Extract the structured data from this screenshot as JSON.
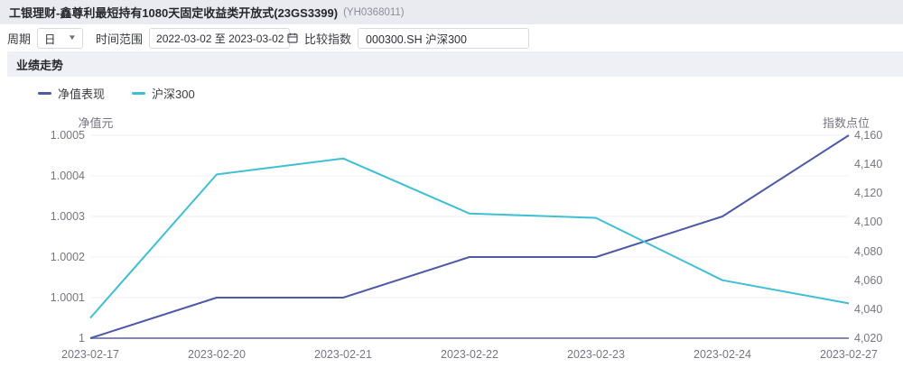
{
  "header": {
    "title": "工银理财-鑫尊利最短持有1080天固定收益类开放式(23GS3399)",
    "code": "(YH0368011)"
  },
  "toolbar": {
    "period_label": "周期",
    "period_value": "日",
    "range_label": "时间范围",
    "range_value": "2022-03-02 至 2023-03-02",
    "index_label": "比较指数",
    "index_value": "000300.SH 沪深300"
  },
  "section": {
    "title": "业绩走势"
  },
  "legend": [
    {
      "label": "净值表现",
      "color": "#4e5aa8"
    },
    {
      "label": "沪深300",
      "color": "#3ebfd4"
    }
  ],
  "colors": {
    "nav_line": "#4e5aa8",
    "csi_line": "#3ebfd4",
    "gridline": "#eceef7",
    "axis_line": "#8487b0",
    "axis_text": "#75767f"
  },
  "chart_data": {
    "type": "line",
    "title": "业绩走势",
    "categories": [
      "2023-02-17",
      "2023-02-20",
      "2023-02-21",
      "2023-02-22",
      "2023-02-23",
      "2023-02-24",
      "2023-02-27"
    ],
    "series": [
      {
        "name": "净值表现",
        "axis": "left",
        "color": "#4e5aa8",
        "values": [
          1.0,
          1.0001,
          1.0001,
          1.0002,
          1.0002,
          1.0003,
          1.0005
        ]
      },
      {
        "name": "沪深300",
        "axis": "right",
        "color": "#3ebfd4",
        "values": [
          4034,
          4133,
          4144,
          4106,
          4103,
          4060,
          4044
        ]
      }
    ],
    "yaxis_left": {
      "title": "净值元",
      "min": 1,
      "max": 1.0005,
      "ticks": [
        "1.0005",
        "1.0004",
        "1.0003",
        "1.0002",
        "1.0001",
        "1"
      ]
    },
    "yaxis_right": {
      "title": "指数点位",
      "min": 4020,
      "max": 4160,
      "ticks": [
        "4,160",
        "4,140",
        "4,120",
        "4,100",
        "4,080",
        "4,060",
        "4,040",
        "4,020"
      ]
    },
    "grid": true,
    "legend_position": "top-left"
  }
}
